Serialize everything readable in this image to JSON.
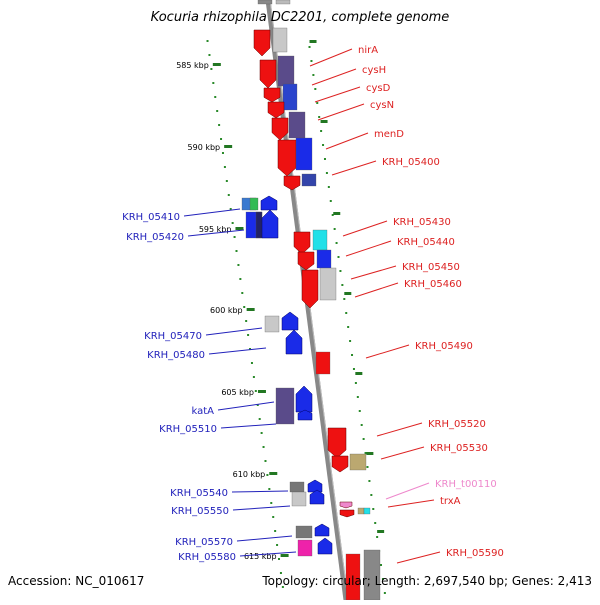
{
  "title": "Kocuria rhizophila DC2201, complete genome",
  "footer": {
    "accession": "Accession: NC_010617",
    "topology": "Topology: circular; Length: 2,697,540 bp; Genes: 2,413"
  },
  "scale": {
    "unit": "kbp",
    "ticks": [
      {
        "label": "585 kbp",
        "value": 585
      },
      {
        "label": "590 kbp",
        "value": 590
      },
      {
        "label": "595 kbp",
        "value": 595
      },
      {
        "label": "600 kbp",
        "value": 600
      },
      {
        "label": "605 kbp",
        "value": 605
      },
      {
        "label": "610 kbp",
        "value": 610
      },
      {
        "label": "615 kbp",
        "value": 615
      }
    ]
  },
  "genes_forward": [
    {
      "name": "nirA",
      "color": "#dd2222"
    },
    {
      "name": "cysH",
      "color": "#dd2222"
    },
    {
      "name": "cysD",
      "color": "#dd2222"
    },
    {
      "name": "cysN",
      "color": "#dd2222"
    },
    {
      "name": "menD",
      "color": "#dd2222"
    },
    {
      "name": "KRH_05400",
      "color": "#dd2222"
    },
    {
      "name": "KRH_05430",
      "color": "#dd2222"
    },
    {
      "name": "KRH_05440",
      "color": "#dd2222"
    },
    {
      "name": "KRH_05450",
      "color": "#dd2222"
    },
    {
      "name": "KRH_05460",
      "color": "#dd2222"
    },
    {
      "name": "KRH_05490",
      "color": "#dd2222"
    },
    {
      "name": "KRH_05520",
      "color": "#dd2222"
    },
    {
      "name": "KRH_05530",
      "color": "#dd2222"
    },
    {
      "name": "KRH_t00110",
      "color": "#ee88cc"
    },
    {
      "name": "trxA",
      "color": "#dd2222"
    },
    {
      "name": "KRH_05590",
      "color": "#dd2222"
    }
  ],
  "genes_reverse": [
    {
      "name": "KRH_05410",
      "color": "#2222bb"
    },
    {
      "name": "KRH_05420",
      "color": "#2222bb"
    },
    {
      "name": "KRH_05470",
      "color": "#2222bb"
    },
    {
      "name": "KRH_05480",
      "color": "#2222bb"
    },
    {
      "name": "katA",
      "color": "#2222bb"
    },
    {
      "name": "KRH_05510",
      "color": "#2222bb"
    },
    {
      "name": "KRH_05540",
      "color": "#2222bb"
    },
    {
      "name": "KRH_05550",
      "color": "#2222bb"
    },
    {
      "name": "KRH_05570",
      "color": "#2222bb"
    },
    {
      "name": "KRH_05580",
      "color": "#2222bb"
    }
  ],
  "colors": {
    "forward_strand": "#ff0000",
    "reverse_strand": "#0000ff",
    "backbone": "#888888",
    "ticks": "#227722"
  }
}
